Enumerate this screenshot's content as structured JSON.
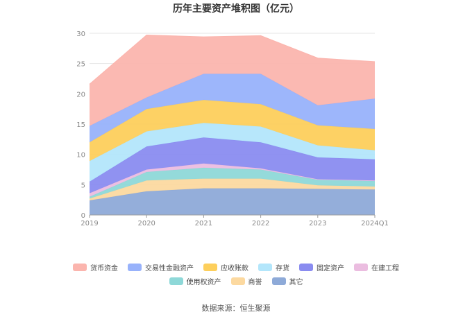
{
  "title": "历年主要资产堆积图（亿元）",
  "source_label": "数据来源：恒生聚源",
  "chart_data": {
    "type": "area",
    "stacked": true,
    "title": "历年主要资产堆积图（亿元）",
    "categories": [
      "2019",
      "2020",
      "2021",
      "2022",
      "2023",
      "2024Q1"
    ],
    "ylim": [
      0,
      30
    ],
    "yticks": [
      0,
      5,
      10,
      15,
      20,
      25,
      30
    ],
    "grid": true,
    "legend_position": "bottom",
    "series": [
      {
        "name": "其它",
        "color": "#8eaad8",
        "values": [
          2.4,
          3.9,
          4.4,
          4.4,
          4.3,
          4.2
        ]
      },
      {
        "name": "商誉",
        "color": "#fcd9a0",
        "values": [
          0.3,
          1.8,
          1.6,
          1.6,
          0.6,
          0.5
        ]
      },
      {
        "name": "使用权资产",
        "color": "#8ed8d8",
        "values": [
          0.3,
          1.4,
          1.8,
          1.5,
          0.9,
          0.9
        ]
      },
      {
        "name": "在建工程",
        "color": "#ebbde0",
        "values": [
          0.6,
          0.4,
          0.7,
          0.2,
          0.1,
          0.1
        ]
      },
      {
        "name": "固定资产",
        "color": "#8a8cf0",
        "values": [
          1.9,
          3.8,
          4.3,
          4.3,
          3.6,
          3.5
        ]
      },
      {
        "name": "存货",
        "color": "#b3e6fb",
        "values": [
          3.4,
          2.5,
          2.4,
          2.6,
          2.0,
          1.5
        ]
      },
      {
        "name": "应收账款",
        "color": "#fdcf5c",
        "values": [
          3.1,
          3.7,
          3.8,
          3.7,
          3.3,
          3.5
        ]
      },
      {
        "name": "交易性金融资产",
        "color": "#98b2fb",
        "values": [
          2.7,
          1.9,
          4.3,
          5.0,
          3.3,
          5.0
        ]
      },
      {
        "name": "货币资金",
        "color": "#fbb5ae",
        "values": [
          6.9,
          10.3,
          6.1,
          6.3,
          7.8,
          6.1
        ]
      }
    ]
  },
  "legend_rows": [
    [
      "货币资金",
      "交易性金融资产",
      "应收账款",
      "存货",
      "固定资产",
      "在建工程"
    ],
    [
      "使用权资产",
      "商誉",
      "其它"
    ]
  ]
}
